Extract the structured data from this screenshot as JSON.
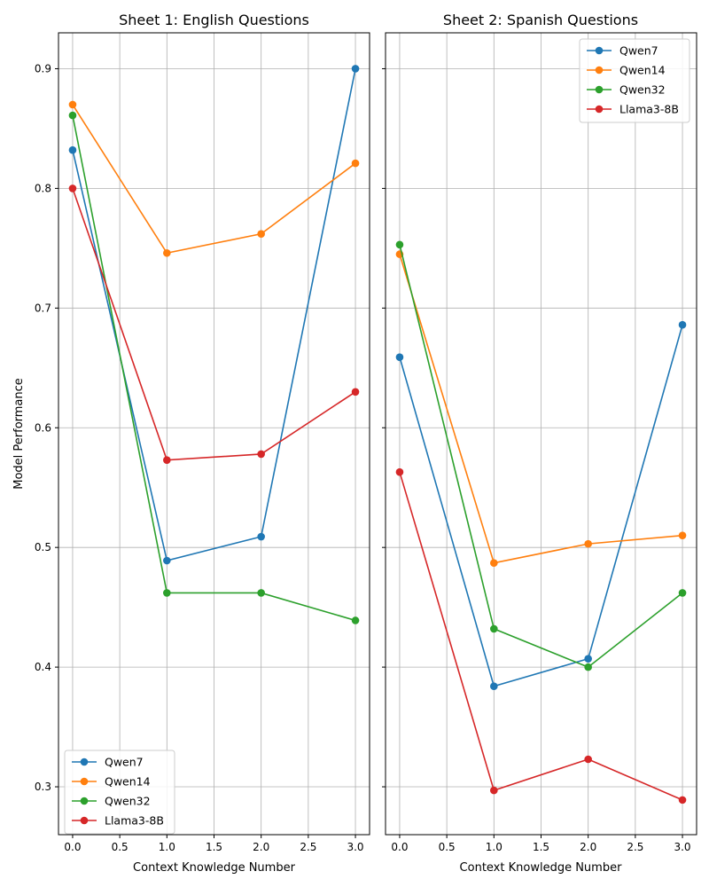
{
  "chart_data": [
    {
      "type": "line",
      "title": "Sheet 1: English Questions",
      "xlabel": "Context Knowledge Number",
      "ylabel": "Model Performance",
      "x": [
        0,
        1,
        2,
        3
      ],
      "xlim": [
        -0.15,
        3.15
      ],
      "ylim": [
        0.26,
        0.93
      ],
      "xticks": [
        0.0,
        0.5,
        1.0,
        1.5,
        2.0,
        2.5,
        3.0
      ],
      "xtick_labels": [
        "0.0",
        "0.5",
        "1.0",
        "1.5",
        "2.0",
        "2.5",
        "3.0"
      ],
      "yticks": [
        0.3,
        0.4,
        0.5,
        0.6,
        0.7,
        0.8,
        0.9
      ],
      "ytick_labels": [
        "0.3",
        "0.4",
        "0.5",
        "0.6",
        "0.7",
        "0.8",
        "0.9"
      ],
      "grid": true,
      "legend_position": "lower-left",
      "series": [
        {
          "name": "Qwen7",
          "color": "#1f77b4",
          "values": [
            0.832,
            0.489,
            0.509,
            0.9
          ]
        },
        {
          "name": "Qwen14",
          "color": "#ff7f0e",
          "values": [
            0.87,
            0.746,
            0.762,
            0.821
          ]
        },
        {
          "name": "Qwen32",
          "color": "#2ca02c",
          "values": [
            0.861,
            0.462,
            0.462,
            0.439
          ]
        },
        {
          "name": "Llama3-8B",
          "color": "#d62728",
          "values": [
            0.8,
            0.573,
            0.578,
            0.63
          ]
        }
      ]
    },
    {
      "type": "line",
      "title": "Sheet 2: Spanish Questions",
      "xlabel": "Context Knowledge Number",
      "ylabel": "",
      "x": [
        0,
        1,
        2,
        3
      ],
      "xlim": [
        -0.15,
        3.15
      ],
      "ylim": [
        0.26,
        0.93
      ],
      "xticks": [
        0.0,
        0.5,
        1.0,
        1.5,
        2.0,
        2.5,
        3.0
      ],
      "xtick_labels": [
        "0.0",
        "0.5",
        "1.0",
        "1.5",
        "2.0",
        "2.5",
        "3.0"
      ],
      "yticks": [
        0.3,
        0.4,
        0.5,
        0.6,
        0.7,
        0.8,
        0.9
      ],
      "ytick_labels": [],
      "grid": true,
      "legend_position": "upper-right",
      "series": [
        {
          "name": "Qwen7",
          "color": "#1f77b4",
          "values": [
            0.659,
            0.384,
            0.407,
            0.686
          ]
        },
        {
          "name": "Qwen14",
          "color": "#ff7f0e",
          "values": [
            0.745,
            0.487,
            0.503,
            0.51
          ]
        },
        {
          "name": "Qwen32",
          "color": "#2ca02c",
          "values": [
            0.753,
            0.432,
            0.4,
            0.462
          ]
        },
        {
          "name": "Llama3-8B",
          "color": "#d62728",
          "values": [
            0.563,
            0.297,
            0.323,
            0.289
          ]
        }
      ]
    }
  ]
}
